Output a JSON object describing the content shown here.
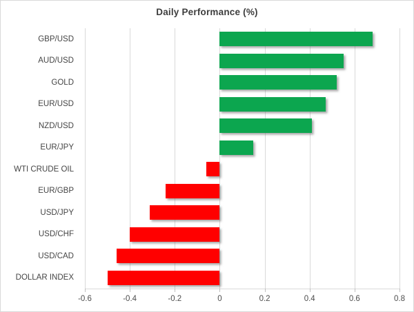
{
  "chart_data": {
    "type": "bar",
    "orientation": "horizontal",
    "title": "Daily Performance (%)",
    "categories": [
      "GBP/USD",
      "AUD/USD",
      "GOLD",
      "EUR/USD",
      "NZD/USD",
      "EUR/JPY",
      "WTI CRUDE OIL",
      "EUR/GBP",
      "USD/JPY",
      "USD/CHF",
      "USD/CAD",
      "DOLLAR INDEX"
    ],
    "values": [
      0.68,
      0.55,
      0.52,
      0.47,
      0.41,
      0.15,
      -0.06,
      -0.24,
      -0.31,
      -0.4,
      -0.46,
      -0.5
    ],
    "xlabel": "",
    "ylabel": "",
    "xlim": [
      -0.6,
      0.8
    ],
    "xticks": [
      -0.6,
      -0.4,
      -0.2,
      0,
      0.2,
      0.4,
      0.6,
      0.8
    ],
    "xtick_labels": [
      "-0.6",
      "-0.4",
      "-0.2",
      "0",
      "0.2",
      "0.4",
      "0.6",
      "0.8"
    ],
    "grid": true,
    "legend": false,
    "colors": {
      "positive": "#0CA64F",
      "negative": "#FF0000",
      "gridline": "#D9D9D9",
      "title_text": "#3D3D3D",
      "axis_text": "#4D4D4D"
    }
  }
}
